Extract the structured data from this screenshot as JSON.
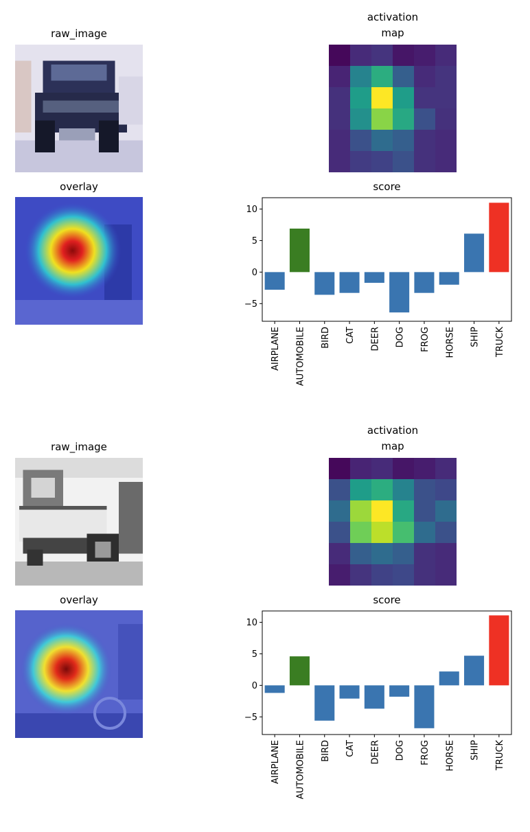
{
  "figures": [
    {
      "raw_title": "raw_image",
      "map_title_line1": "activation",
      "map_title_line2": "map",
      "overlay_title": "overlay",
      "score_title": "score",
      "raw_icon": "truck-photo",
      "overlay_icon": "heatmap-overlay",
      "activation_grid": [
        [
          0.02,
          0.12,
          0.15,
          0.06,
          0.08,
          0.12
        ],
        [
          0.1,
          0.45,
          0.62,
          0.3,
          0.12,
          0.15
        ],
        [
          0.14,
          0.55,
          1.0,
          0.55,
          0.15,
          0.15
        ],
        [
          0.14,
          0.5,
          0.82,
          0.6,
          0.25,
          0.14
        ],
        [
          0.12,
          0.25,
          0.35,
          0.3,
          0.14,
          0.12
        ],
        [
          0.12,
          0.18,
          0.2,
          0.25,
          0.14,
          0.12
        ]
      ],
      "chart_data": {
        "type": "bar",
        "title": "score",
        "categories": [
          "AIRPLANE",
          "AUTOMOBILE",
          "BIRD",
          "CAT",
          "DEER",
          "DOG",
          "FROG",
          "HORSE",
          "SHIP",
          "TRUCK"
        ],
        "values": [
          -2.8,
          6.9,
          -3.6,
          -3.3,
          -1.7,
          -6.4,
          -3.3,
          -2.0,
          6.1,
          11.0
        ],
        "colors": [
          "#3a75b0",
          "#3a7d22",
          "#3a75b0",
          "#3a75b0",
          "#3a75b0",
          "#3a75b0",
          "#3a75b0",
          "#3a75b0",
          "#3a75b0",
          "#ee3124"
        ],
        "ylim": [
          -7.8,
          11.8
        ],
        "yticks": [
          -5,
          0,
          5,
          10
        ],
        "xlabel": "",
        "ylabel": ""
      }
    },
    {
      "raw_title": "raw_image",
      "map_title_line1": "activation",
      "map_title_line2": "map",
      "overlay_title": "overlay",
      "score_title": "score",
      "raw_icon": "vintage-car-photo",
      "overlay_icon": "heatmap-overlay",
      "activation_grid": [
        [
          0.02,
          0.1,
          0.12,
          0.06,
          0.08,
          0.12
        ],
        [
          0.25,
          0.55,
          0.62,
          0.45,
          0.25,
          0.22
        ],
        [
          0.35,
          0.85,
          1.0,
          0.6,
          0.25,
          0.35
        ],
        [
          0.25,
          0.78,
          0.9,
          0.7,
          0.35,
          0.25
        ],
        [
          0.12,
          0.3,
          0.35,
          0.3,
          0.14,
          0.12
        ],
        [
          0.08,
          0.15,
          0.2,
          0.22,
          0.14,
          0.12
        ]
      ],
      "chart_data": {
        "type": "bar",
        "title": "score",
        "categories": [
          "AIRPLANE",
          "AUTOMOBILE",
          "BIRD",
          "CAT",
          "DEER",
          "DOG",
          "FROG",
          "HORSE",
          "SHIP",
          "TRUCK"
        ],
        "values": [
          -1.2,
          4.6,
          -5.6,
          -2.1,
          -3.7,
          -1.8,
          -6.8,
          2.2,
          4.7,
          11.1
        ],
        "colors": [
          "#3a75b0",
          "#3a7d22",
          "#3a75b0",
          "#3a75b0",
          "#3a75b0",
          "#3a75b0",
          "#3a75b0",
          "#3a75b0",
          "#3a75b0",
          "#ee3124"
        ],
        "ylim": [
          -7.8,
          11.8
        ],
        "yticks": [
          -5,
          0,
          5,
          10
        ],
        "xlabel": "",
        "ylabel": ""
      }
    }
  ]
}
